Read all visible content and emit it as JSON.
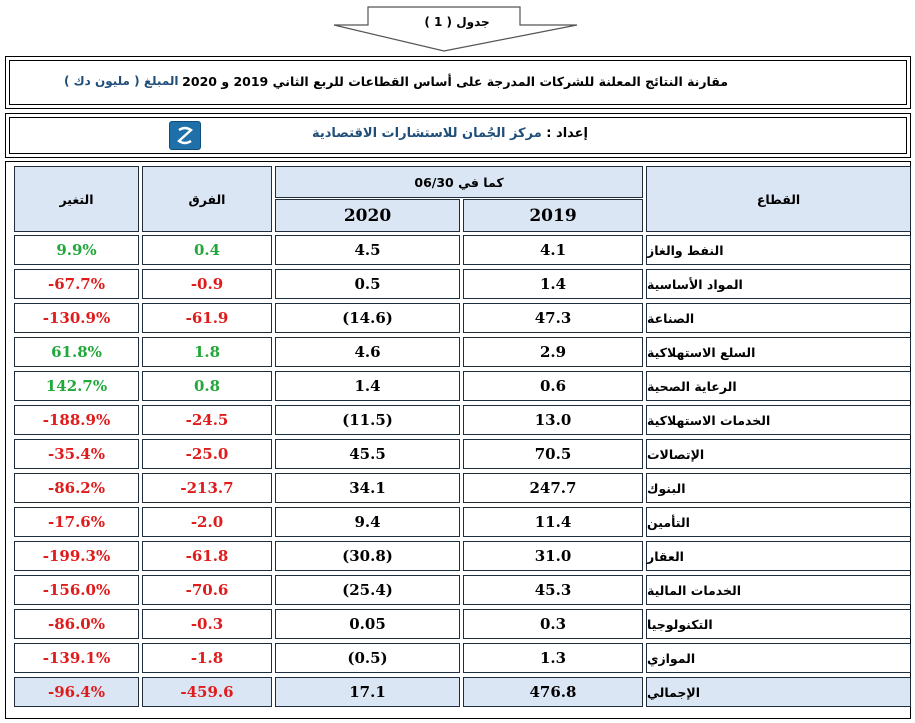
{
  "caption": "جدول ( 1 )",
  "title": "مقارنة النتائج المعلنة للشركات المدرجة على أساس القطاعات للربع الثاني 2019 و 2020",
  "unit": "المبلغ ( مليون دك )",
  "prepared_by_label": "إعداد :",
  "prepared_by_name": "مركز الجُمان للاستشارات الاقتصادية",
  "colors": {
    "header_fill": "#dbe6f4",
    "positive": "#22a83a",
    "negative": "#e01b1b",
    "unit_text": "#1f4e79",
    "logo": "#1f6fa8"
  },
  "icons": {
    "logo": "aljuman-logo-icon",
    "caption_arrow": "down-arrow-icon"
  },
  "table": {
    "headers": {
      "sector": "القطاع",
      "as_of": "كما في 06/30",
      "y2019": "2019",
      "y2020": "2020",
      "diff": "الفرق",
      "change": "التغير"
    },
    "rows": [
      {
        "sector": "النفط والغاز",
        "y2019": "4.1",
        "y2020": "4.5",
        "diff": "0.4",
        "change": "9.9%",
        "sign": "pos"
      },
      {
        "sector": "المواد الأساسية",
        "y2019": "1.4",
        "y2020": "0.5",
        "diff": "-0.9",
        "change": "-67.7%",
        "sign": "neg"
      },
      {
        "sector": "الصناعة",
        "y2019": "47.3",
        "y2020": "(14.6)",
        "diff": "-61.9",
        "change": "-130.9%",
        "sign": "neg"
      },
      {
        "sector": "السلع الاستهلاكية",
        "y2019": "2.9",
        "y2020": "4.6",
        "diff": "1.8",
        "change": "61.8%",
        "sign": "pos"
      },
      {
        "sector": "الرعاية الصحية",
        "y2019": "0.6",
        "y2020": "1.4",
        "diff": "0.8",
        "change": "142.7%",
        "sign": "pos"
      },
      {
        "sector": "الخدمات الاستهلاكية",
        "y2019": "13.0",
        "y2020": "(11.5)",
        "diff": "-24.5",
        "change": "-188.9%",
        "sign": "neg"
      },
      {
        "sector": "الإتصالات",
        "y2019": "70.5",
        "y2020": "45.5",
        "diff": "-25.0",
        "change": "-35.4%",
        "sign": "neg"
      },
      {
        "sector": "البنوك",
        "y2019": "247.7",
        "y2020": "34.1",
        "diff": "-213.7",
        "change": "-86.2%",
        "sign": "neg"
      },
      {
        "sector": "التأمين",
        "y2019": "11.4",
        "y2020": "9.4",
        "diff": "-2.0",
        "change": "-17.6%",
        "sign": "neg"
      },
      {
        "sector": "العقار",
        "y2019": "31.0",
        "y2020": "(30.8)",
        "diff": "-61.8",
        "change": "-199.3%",
        "sign": "neg"
      },
      {
        "sector": "الخدمات المالية",
        "y2019": "45.3",
        "y2020": "(25.4)",
        "diff": "-70.6",
        "change": "-156.0%",
        "sign": "neg"
      },
      {
        "sector": "التكنولوجيا",
        "y2019": "0.3",
        "y2020": "0.05",
        "diff": "-0.3",
        "change": "-86.0%",
        "sign": "neg"
      },
      {
        "sector": "الموازي",
        "y2019": "1.3",
        "y2020": "(0.5)",
        "diff": "-1.8",
        "change": "-139.1%",
        "sign": "neg"
      }
    ],
    "total": {
      "sector": "الإجمالي",
      "y2019": "476.8",
      "y2020": "17.1",
      "diff": "-459.6",
      "change": "-96.4%",
      "sign": "neg"
    }
  }
}
